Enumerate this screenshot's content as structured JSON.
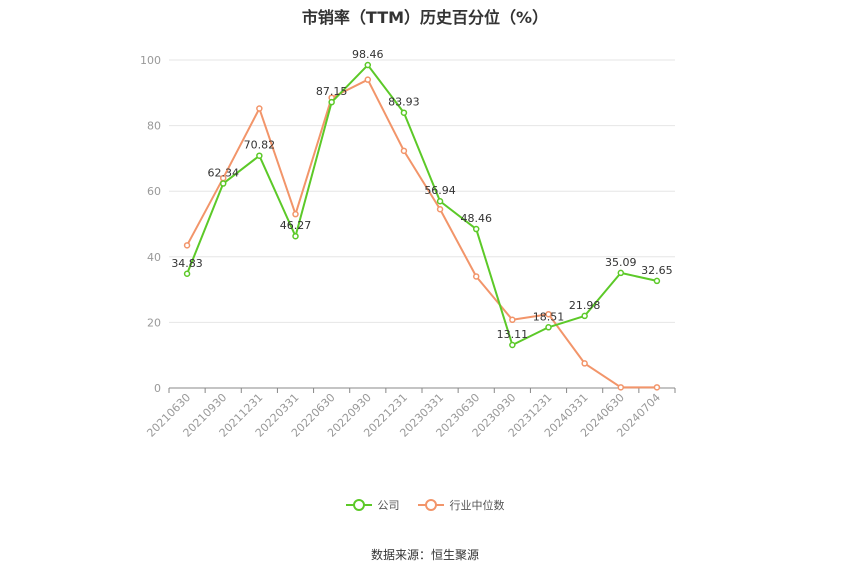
{
  "chart_data": {
    "type": "line",
    "title": "市销率（TTM）历史百分位（%）",
    "categories": [
      "20210630",
      "20210930",
      "20211231",
      "20220331",
      "20220630",
      "20220930",
      "20221231",
      "20230331",
      "20230630",
      "20230930",
      "20231231",
      "20240331",
      "20240630",
      "20240704"
    ],
    "series": [
      {
        "name": "公司",
        "color": "#5cc928",
        "values": [
          34.83,
          62.34,
          70.82,
          46.27,
          87.15,
          98.46,
          83.93,
          56.94,
          48.46,
          13.11,
          18.51,
          21.98,
          35.09,
          32.65
        ],
        "labels": [
          "34.83",
          "62.34",
          "70.82",
          "46.27",
          "87.15",
          "98.46",
          "83.93",
          "56.94",
          "48.46",
          "13.11",
          "18.51",
          "21.98",
          "35.09",
          "32.65"
        ]
      },
      {
        "name": "行业中位数",
        "color": "#f2956a",
        "values": [
          43.5,
          64.0,
          85.2,
          53.0,
          88.5,
          94.0,
          72.3,
          54.5,
          34.0,
          20.8,
          22.5,
          7.5,
          0.2,
          0.2
        ]
      }
    ],
    "ylim": [
      0,
      100
    ],
    "yticks": [
      "0",
      "20",
      "40",
      "60",
      "80",
      "100"
    ],
    "grid": true,
    "legend_position": "bottom",
    "xlabel": "",
    "ylabel": ""
  },
  "source": "数据来源：恒生聚源"
}
